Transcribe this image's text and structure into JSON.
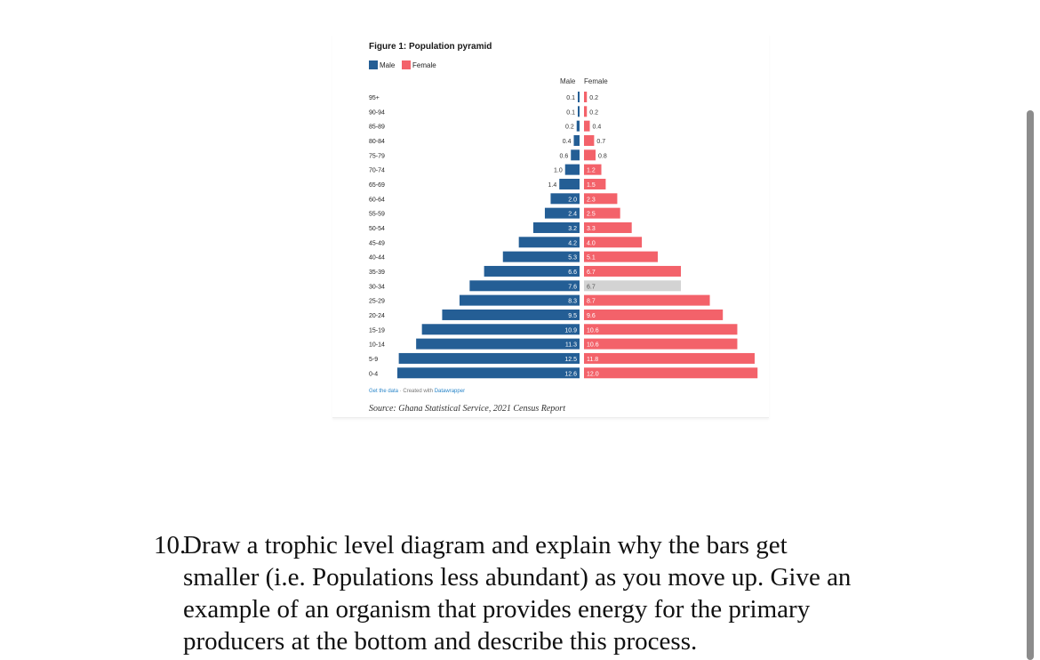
{
  "figure": {
    "title": "Figure 1: Population pyramid",
    "legend": [
      {
        "label": "Male",
        "color": "#245e95"
      },
      {
        "label": "Female",
        "color": "#f3626a"
      }
    ],
    "column_male": "Male",
    "column_female": "Female",
    "footer_link_1": "Get the data",
    "footer_sep": " · Created with ",
    "footer_link_2": "Datawrapper",
    "source": "Source: Ghana Statistical Service, 2021 Census Report"
  },
  "chart_data": {
    "type": "bar",
    "orientation": "horizontal-butterfly",
    "categories": [
      "95+",
      "90-94",
      "85-89",
      "80-84",
      "75-79",
      "70-74",
      "65-69",
      "60-64",
      "55-59",
      "50-54",
      "45-49",
      "40-44",
      "35-39",
      "30-34",
      "25-29",
      "20-24",
      "15-19",
      "10-14",
      "5-9",
      "0-4"
    ],
    "series": [
      {
        "name": "Male",
        "color": "#245e95",
        "values": [
          0.1,
          0.1,
          0.2,
          0.4,
          0.6,
          1.0,
          1.4,
          2.0,
          2.4,
          3.2,
          4.2,
          5.3,
          6.6,
          7.6,
          8.3,
          9.5,
          10.9,
          11.3,
          12.5,
          12.6
        ]
      },
      {
        "name": "Female",
        "color": "#f3626a",
        "values": [
          0.2,
          0.2,
          0.4,
          0.7,
          0.8,
          1.2,
          1.5,
          2.3,
          2.5,
          3.3,
          4.0,
          5.1,
          6.7,
          6.7,
          8.7,
          9.6,
          10.6,
          10.6,
          11.8,
          12.0
        ]
      }
    ],
    "highlighted": {
      "series": "Female",
      "category": "30-34",
      "color": "#d3d3d3"
    },
    "value_labels": true,
    "grid": false,
    "legend_position": "top-left"
  },
  "question": {
    "number": "10.",
    "lines": [
      "Draw a trophic level diagram and explain why the bars get",
      "smaller (i.e. Populations less abundant) as you move up. Give an",
      "example of an organism that provides energy for the primary",
      "producers at the bottom and describe this process."
    ]
  }
}
